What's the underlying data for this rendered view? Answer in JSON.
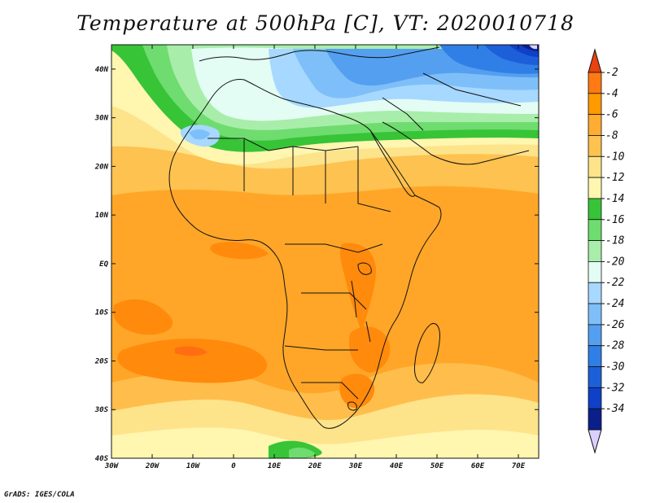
{
  "title": "Temperature at 500hPa [C], VT: 2020010718",
  "credit": "GrADS: IGES/COLA",
  "map": {
    "lon_range": [
      -30,
      75
    ],
    "lat_range": [
      -40,
      45
    ],
    "lon_ticks": [
      {
        "value": -30,
        "label": "30W"
      },
      {
        "value": -20,
        "label": "20W"
      },
      {
        "value": -10,
        "label": "10W"
      },
      {
        "value": 0,
        "label": "0"
      },
      {
        "value": 10,
        "label": "10E"
      },
      {
        "value": 20,
        "label": "20E"
      },
      {
        "value": 30,
        "label": "30E"
      },
      {
        "value": 40,
        "label": "40E"
      },
      {
        "value": 50,
        "label": "50E"
      },
      {
        "value": 60,
        "label": "60E"
      },
      {
        "value": 70,
        "label": "70E"
      }
    ],
    "lat_ticks": [
      {
        "value": 40,
        "label": "40N"
      },
      {
        "value": 30,
        "label": "30N"
      },
      {
        "value": 20,
        "label": "20N"
      },
      {
        "value": 10,
        "label": "10N"
      },
      {
        "value": 0,
        "label": "EQ"
      },
      {
        "value": -10,
        "label": "10S"
      },
      {
        "value": -20,
        "label": "20S"
      },
      {
        "value": -30,
        "label": "30S"
      },
      {
        "value": -40,
        "label": "40S"
      }
    ]
  },
  "colorbar": {
    "labels": [
      "-2",
      "-4",
      "-6",
      "-8",
      "-10",
      "-12",
      "-14",
      "-16",
      "-18",
      "-20",
      "-22",
      "-24",
      "-26",
      "-28",
      "-30",
      "-32",
      "-34"
    ],
    "colors": [
      "#ff7a12",
      "#ff9a00",
      "#ffad32",
      "#fdc24f",
      "#fde38a",
      "#fff6b0",
      "#37c437",
      "#6fdc6f",
      "#a8eeaa",
      "#e3fcf4",
      "#a7d8ff",
      "#7fbff9",
      "#549ff0",
      "#2f7fe6",
      "#1c5fd9",
      "#0f40c8",
      "#0a1f8a"
    ],
    "top_arrow_color": "#e8420e",
    "bottom_arrow_color": "#dccfff"
  },
  "map_colors": {
    "ocean_default": "#ffad32"
  }
}
